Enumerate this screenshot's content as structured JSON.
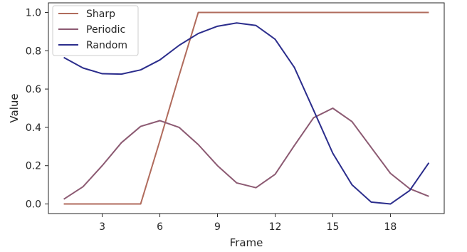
{
  "chart_data": {
    "type": "line",
    "title": "",
    "xlabel": "Frame",
    "ylabel": "Value",
    "xlim": [
      0.2,
      20.8
    ],
    "ylim": [
      -0.05,
      1.05
    ],
    "xticks": [
      3,
      6,
      9,
      12,
      15,
      18
    ],
    "yticks": [
      0.0,
      0.2,
      0.4,
      0.6,
      0.8,
      1.0
    ],
    "xtick_labels": [
      "3",
      "6",
      "9",
      "12",
      "15",
      "18"
    ],
    "ytick_labels": [
      "0.0",
      "0.2",
      "0.4",
      "0.6",
      "0.8",
      "1.0"
    ],
    "grid": false,
    "legend_position": "top-left",
    "x": [
      1,
      2,
      3,
      4,
      5,
      6,
      7,
      8,
      9,
      10,
      11,
      12,
      13,
      14,
      15,
      16,
      17,
      18,
      19,
      20
    ],
    "series": [
      {
        "name": "Sharp",
        "color": "#b06b5c",
        "values": [
          0.0,
          0.0,
          0.0,
          0.0,
          0.0,
          0.33,
          0.67,
          1.0,
          1.0,
          1.0,
          1.0,
          1.0,
          1.0,
          1.0,
          1.0,
          1.0,
          1.0,
          1.0,
          1.0,
          1.0
        ]
      },
      {
        "name": "Periodic",
        "color": "#8c5a72",
        "values": [
          0.025,
          0.09,
          0.2,
          0.32,
          0.405,
          0.435,
          0.4,
          0.31,
          0.2,
          0.11,
          0.085,
          0.155,
          0.305,
          0.45,
          0.5,
          0.43,
          0.295,
          0.16,
          0.08,
          0.04
        ]
      },
      {
        "name": "Random",
        "color": "#2b2d8c",
        "values": [
          0.765,
          0.71,
          0.68,
          0.678,
          0.7,
          0.752,
          0.828,
          0.89,
          0.928,
          0.945,
          0.932,
          0.86,
          0.713,
          0.49,
          0.265,
          0.1,
          0.01,
          0.0,
          0.07,
          0.215
        ]
      }
    ]
  }
}
